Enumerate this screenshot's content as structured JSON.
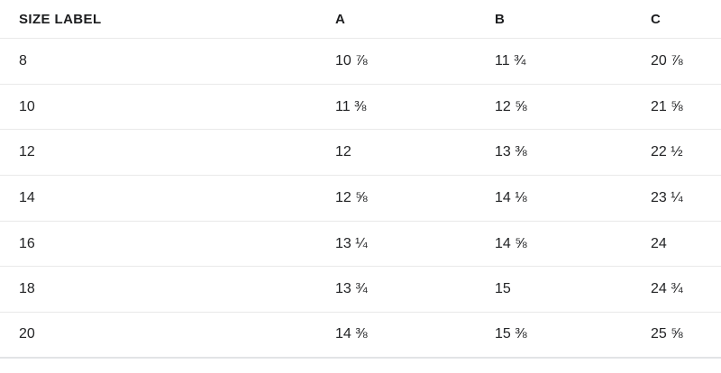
{
  "table": {
    "title_semantic": "size-chart",
    "columns": [
      "SIZE LABEL",
      "A",
      "B",
      "C"
    ],
    "rows": [
      {
        "size": "8",
        "a": "10 ⅞",
        "b": "11 ¾",
        "c": "20 ⅞"
      },
      {
        "size": "10",
        "a": "11 ⅜",
        "b": "12 ⅝",
        "c": "21 ⅝"
      },
      {
        "size": "12",
        "a": "12",
        "b": "13 ⅜",
        "c": "22 ½"
      },
      {
        "size": "14",
        "a": "12 ⅝",
        "b": "14 ⅛",
        "c": "23 ¼"
      },
      {
        "size": "16",
        "a": "13 ¼",
        "b": "14 ⅝",
        "c": "24"
      },
      {
        "size": "18",
        "a": "13 ¾",
        "b": "15",
        "c": "24 ¾"
      },
      {
        "size": "20",
        "a": "14 ⅜",
        "b": "15 ⅜",
        "c": "25 ⅝"
      }
    ],
    "colors": {
      "text": "#222325",
      "header_text": "#1c1d1f",
      "divider": "#e9e9e9",
      "bottom_divider": "#e2e4e6",
      "background": "#ffffff"
    }
  },
  "chart_data": {
    "type": "table",
    "title": "SIZE LABEL",
    "categories": [
      "8",
      "10",
      "12",
      "14",
      "16",
      "18",
      "20"
    ],
    "series": [
      {
        "name": "A",
        "values": [
          10.875,
          11.375,
          12,
          12.625,
          13.25,
          13.75,
          14.375
        ]
      },
      {
        "name": "B",
        "values": [
          11.75,
          12.625,
          13.375,
          14.125,
          14.625,
          15,
          15.375
        ]
      },
      {
        "name": "C",
        "values": [
          20.875,
          21.625,
          22.5,
          23.25,
          24,
          24.75,
          25.625
        ]
      }
    ]
  }
}
